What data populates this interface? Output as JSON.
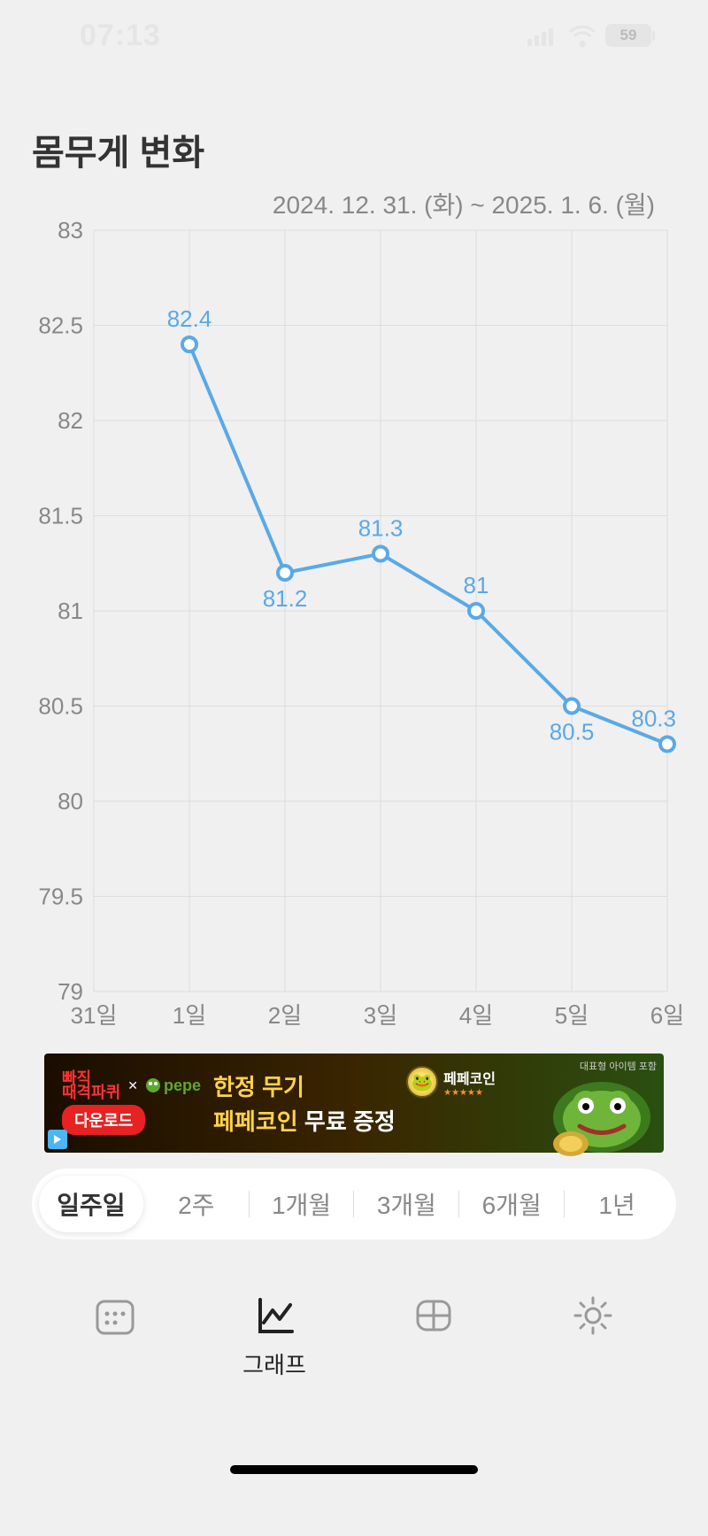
{
  "status_bar": {
    "time": "07:13",
    "battery": "59"
  },
  "title": "몸무게 변화",
  "date_range": "2024. 12. 31. (화) ~ 2025. 1. 6. (월)",
  "chart": {
    "type": "line",
    "line_color": "#5aa9e6",
    "point_fill": "#ffffff",
    "point_stroke": "#5aa9e6",
    "point_radius": 8,
    "line_width": 4,
    "background_color": "#f0f0f0",
    "grid_color": "#dddddd",
    "label_color": "#888888",
    "label_fontsize": 26,
    "point_label_color": "#5aa9e6",
    "ylim": [
      79,
      83
    ],
    "ytick_step": 0.5,
    "yticks": [
      83,
      82.5,
      82,
      81.5,
      81,
      80.5,
      80,
      79.5,
      79
    ],
    "xticks": [
      "31일",
      "1일",
      "2일",
      "3일",
      "4일",
      "5일",
      "6일"
    ],
    "points": [
      {
        "x_index": 1,
        "value": 82.4,
        "label": "82.4",
        "label_pos": "above"
      },
      {
        "x_index": 2,
        "value": 81.2,
        "label": "81.2",
        "label_pos": "below"
      },
      {
        "x_index": 3,
        "value": 81.3,
        "label": "81.3",
        "label_pos": "above"
      },
      {
        "x_index": 4,
        "value": 81.0,
        "label": "81",
        "label_pos": "above"
      },
      {
        "x_index": 5,
        "value": 80.5,
        "label": "80.5",
        "label_pos": "below"
      },
      {
        "x_index": 6,
        "value": 80.3,
        "label": "80.3",
        "label_pos": "above"
      }
    ]
  },
  "ad": {
    "brand1": "빠직\n때격파퀴",
    "brand2": "pepe",
    "download": "다운로드",
    "line1": "한정 무기",
    "line2a": "페페코인",
    "line2b": "무료 증정",
    "coin_name": "페페코인",
    "tag": "대표형 아이템 포함"
  },
  "period_tabs": {
    "active_index": 0,
    "items": [
      "일주일",
      "2주",
      "1개월",
      "3개월",
      "6개월",
      "1년"
    ]
  },
  "bottom_nav": {
    "active_index": 1,
    "items": [
      {
        "icon": "calendar",
        "label": ""
      },
      {
        "icon": "graph",
        "label": "그래프"
      },
      {
        "icon": "table",
        "label": ""
      },
      {
        "icon": "gear",
        "label": ""
      }
    ]
  }
}
